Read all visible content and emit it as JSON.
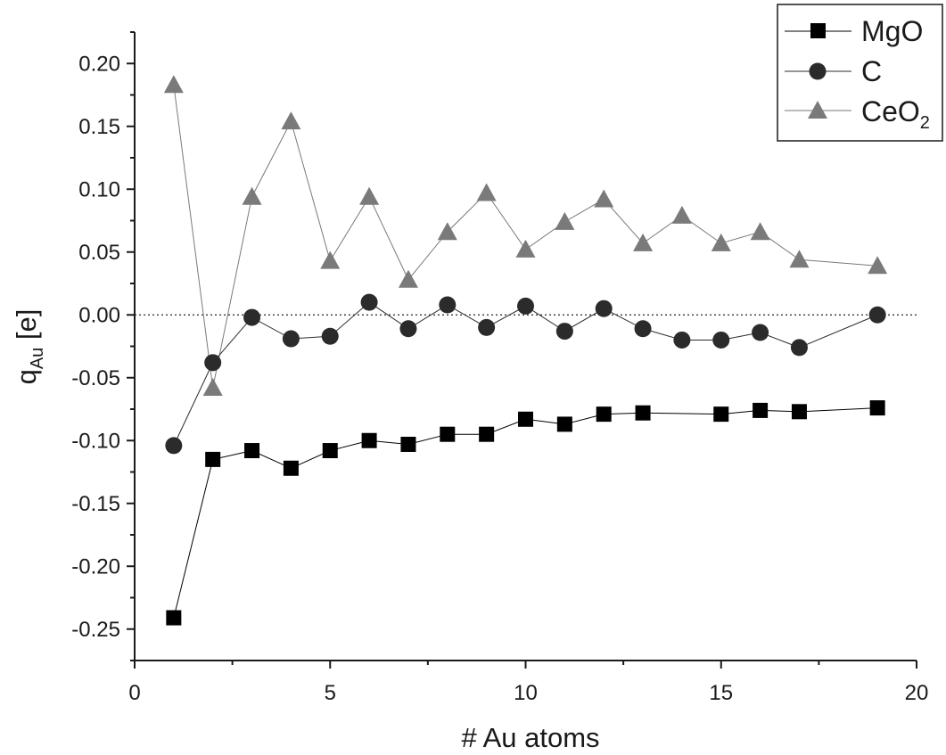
{
  "chart_data": {
    "type": "line",
    "title": "",
    "xlabel": "# Au atoms",
    "ylabel": {
      "main": "q",
      "sub": "Au",
      "unit": " [e]"
    },
    "xlim": [
      0,
      20
    ],
    "ylim": [
      -0.275,
      0.225
    ],
    "x_ticks": [
      0,
      5,
      10,
      15,
      20
    ],
    "x_tick_labels": [
      "0",
      "5",
      "10",
      "15",
      "20"
    ],
    "y_ticks": [
      -0.25,
      -0.2,
      -0.15,
      -0.1,
      -0.05,
      0.0,
      0.05,
      0.1,
      0.15,
      0.2
    ],
    "y_tick_labels": [
      "-0.25",
      "-0.20",
      "-0.15",
      "-0.10",
      "-0.05",
      "0.00",
      "0.05",
      "0.10",
      "0.15",
      "0.20"
    ],
    "grid": false,
    "reference_line": {
      "y": 0.0,
      "style": "dotted"
    },
    "legend": {
      "placement": "top-right",
      "entries": [
        {
          "label": "MgO",
          "label_sub": "",
          "marker": "square"
        },
        {
          "label": "C",
          "label_sub": "",
          "marker": "circle"
        },
        {
          "label": "CeO",
          "label_sub": "2",
          "marker": "triangle"
        }
      ]
    },
    "series": [
      {
        "name": "MgO",
        "marker": "square",
        "color": "#000000",
        "x": [
          1,
          2,
          3,
          4,
          5,
          6,
          7,
          8,
          9,
          10,
          11,
          12,
          13,
          15,
          16,
          17,
          19
        ],
        "y": [
          -0.241,
          -0.115,
          -0.108,
          -0.122,
          -0.108,
          -0.1,
          -0.103,
          -0.095,
          -0.095,
          -0.083,
          -0.087,
          -0.079,
          -0.078,
          -0.079,
          -0.076,
          -0.077,
          -0.074
        ]
      },
      {
        "name": "C",
        "marker": "circle",
        "color": "#2b2b2b",
        "x": [
          1,
          2,
          3,
          4,
          5,
          6,
          7,
          8,
          9,
          10,
          11,
          12,
          13,
          14,
          15,
          16,
          17,
          19
        ],
        "y": [
          -0.104,
          -0.038,
          -0.002,
          -0.019,
          -0.017,
          0.01,
          -0.011,
          0.008,
          -0.01,
          0.007,
          -0.013,
          0.005,
          -0.011,
          -0.02,
          -0.02,
          -0.014,
          -0.026,
          0.0
        ]
      },
      {
        "name": "CeO2",
        "marker": "triangle",
        "color": "#7a7a7a",
        "x": [
          1,
          2,
          3,
          4,
          5,
          6,
          7,
          8,
          9,
          10,
          11,
          12,
          13,
          14,
          15,
          16,
          17,
          19
        ],
        "y": [
          0.183,
          -0.058,
          0.094,
          0.154,
          0.043,
          0.094,
          0.028,
          0.066,
          0.097,
          0.052,
          0.074,
          0.092,
          0.057,
          0.079,
          0.057,
          0.066,
          0.044,
          0.039
        ]
      }
    ]
  }
}
